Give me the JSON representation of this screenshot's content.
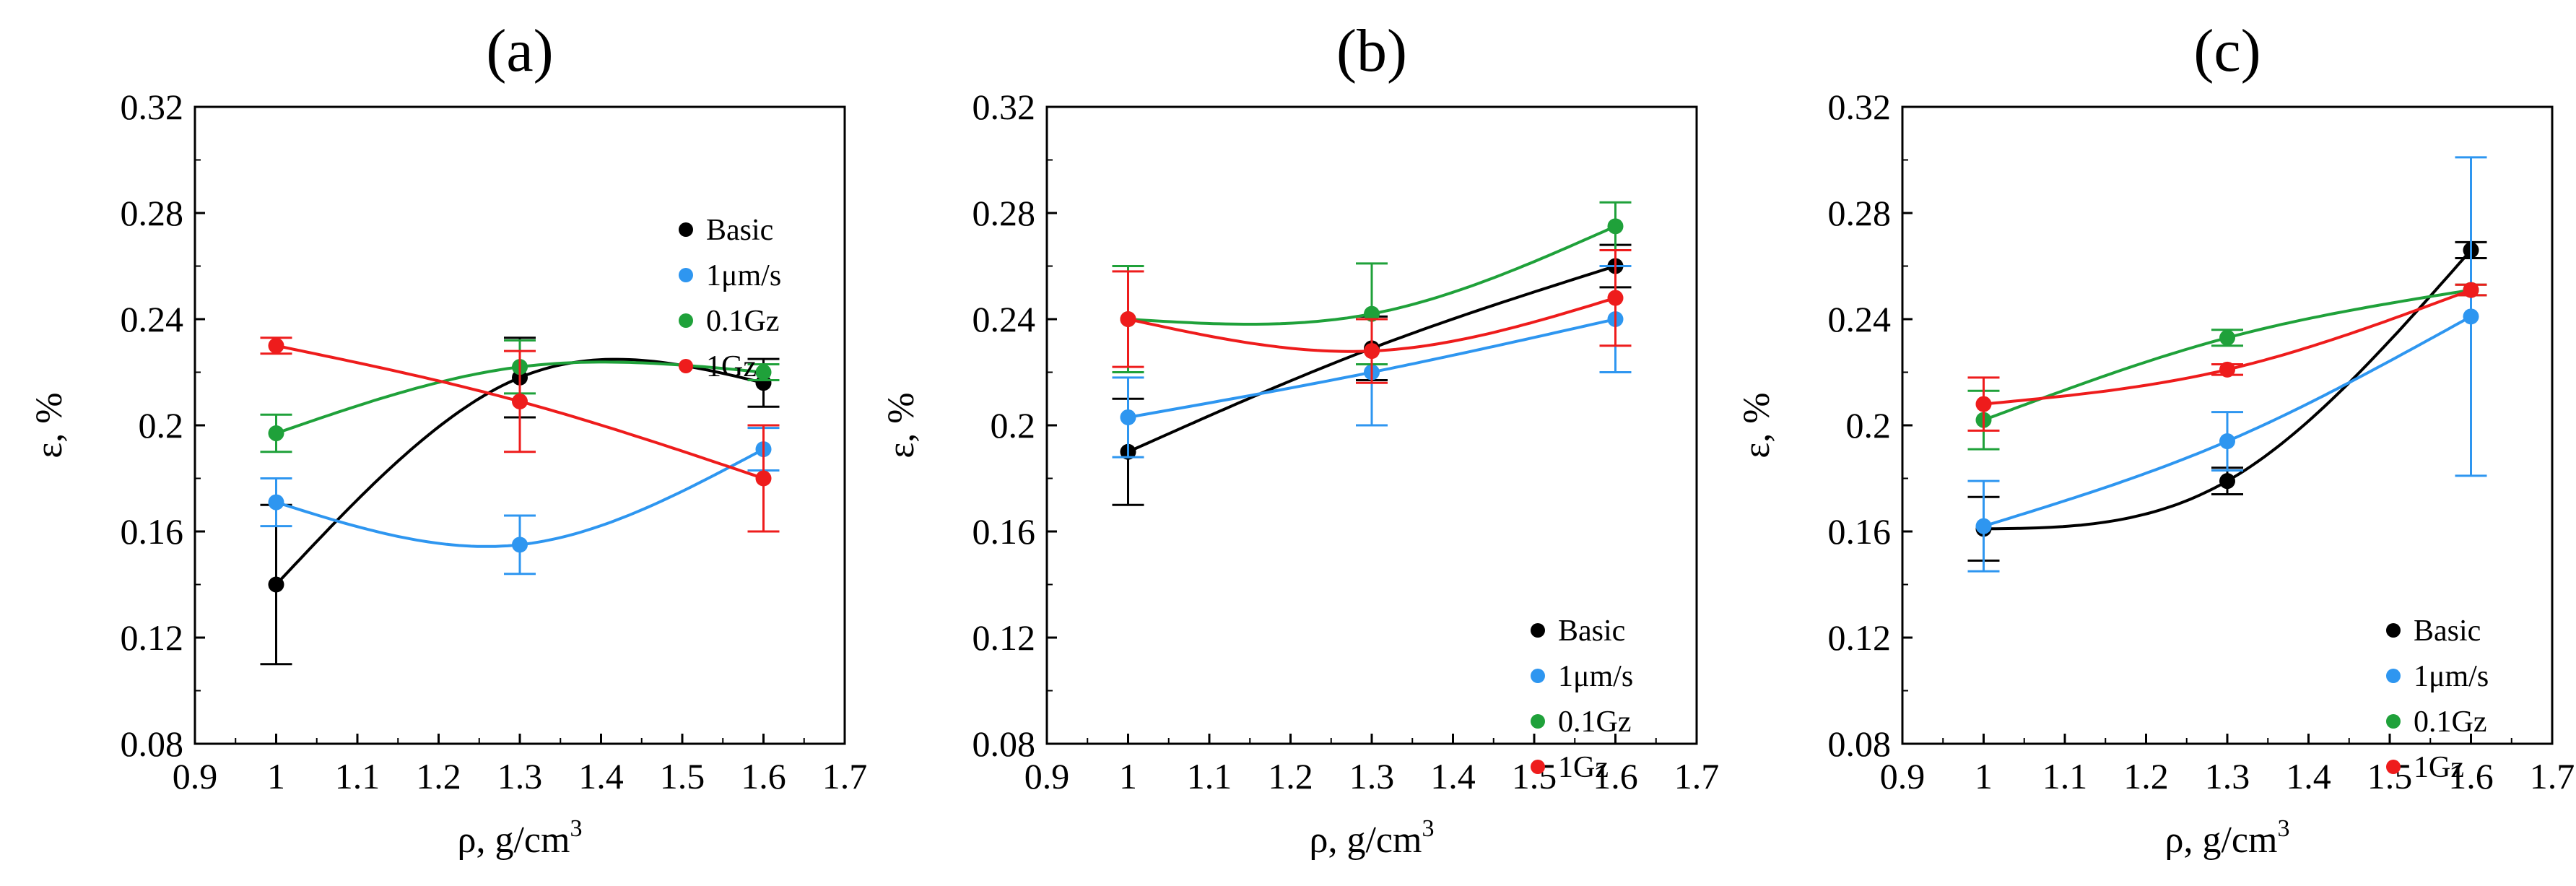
{
  "figure": {
    "description_free": true
  },
  "chart_data": [
    {
      "type": "scatter",
      "panel_label": "(a)",
      "xlabel": "ρ, g/cm",
      "xlabel_superscript": "3",
      "ylabel": "ε, %",
      "xlim": [
        0.9,
        1.7
      ],
      "ylim": [
        0.08,
        0.32
      ],
      "xticks": [
        0.9,
        1.0,
        1.1,
        1.2,
        1.3,
        1.4,
        1.5,
        1.6,
        1.7
      ],
      "xtick_labels": [
        "0.9",
        "1",
        "1.1",
        "1.2",
        "1.3",
        "1.4",
        "1.5",
        "1.6",
        "1.7"
      ],
      "yticks": [
        0.08,
        0.12,
        0.16,
        0.2,
        0.24,
        0.28,
        0.32
      ],
      "ytick_labels": [
        "0.08",
        "0.12",
        "0.16",
        "0.2",
        "0.24",
        "0.28",
        "0.32"
      ],
      "legend_position": "top-right",
      "series": [
        {
          "name": "Basic",
          "color": "#000000",
          "x": [
            1.0,
            1.3,
            1.6
          ],
          "y": [
            0.14,
            0.218,
            0.216
          ],
          "err": [
            0.03,
            0.015,
            0.009
          ]
        },
        {
          "name": "1μm/s",
          "color": "#2e96f0",
          "x": [
            1.0,
            1.3,
            1.6
          ],
          "y": [
            0.171,
            0.155,
            0.191
          ],
          "err": [
            0.009,
            0.011,
            0.008
          ]
        },
        {
          "name": "0.1Gz",
          "color": "#1fa13a",
          "x": [
            1.0,
            1.3,
            1.6
          ],
          "y": [
            0.197,
            0.222,
            0.22
          ],
          "err": [
            0.007,
            0.01,
            0.003
          ]
        },
        {
          "name": "1Gz",
          "color": "#ee1c1c",
          "x": [
            1.0,
            1.3,
            1.6
          ],
          "y": [
            0.23,
            0.209,
            0.18
          ],
          "err": [
            0.003,
            0.019,
            0.02
          ]
        }
      ]
    },
    {
      "type": "scatter",
      "panel_label": "(b)",
      "xlabel": "ρ, g/cm",
      "xlabel_superscript": "3",
      "ylabel": "ε, %",
      "xlim": [
        0.9,
        1.7
      ],
      "ylim": [
        0.08,
        0.32
      ],
      "xticks": [
        0.9,
        1.0,
        1.1,
        1.2,
        1.3,
        1.4,
        1.5,
        1.6,
        1.7
      ],
      "xtick_labels": [
        "0.9",
        "1",
        "1.1",
        "1.2",
        "1.3",
        "1.4",
        "1.5",
        "1.6",
        "1.7"
      ],
      "yticks": [
        0.08,
        0.12,
        0.16,
        0.2,
        0.24,
        0.28,
        0.32
      ],
      "ytick_labels": [
        "0.08",
        "0.12",
        "0.16",
        "0.2",
        "0.24",
        "0.28",
        "0.32"
      ],
      "legend_position": "bottom-right",
      "series": [
        {
          "name": "Basic",
          "color": "#000000",
          "x": [
            1.0,
            1.3,
            1.6
          ],
          "y": [
            0.19,
            0.229,
            0.26
          ],
          "err": [
            0.02,
            0.012,
            0.008
          ]
        },
        {
          "name": "1μm/s",
          "color": "#2e96f0",
          "x": [
            1.0,
            1.3,
            1.6
          ],
          "y": [
            0.203,
            0.22,
            0.24
          ],
          "err": [
            0.015,
            0.02,
            0.02
          ]
        },
        {
          "name": "0.1Gz",
          "color": "#1fa13a",
          "x": [
            1.0,
            1.3,
            1.6
          ],
          "y": [
            0.24,
            0.242,
            0.275
          ],
          "err": [
            0.02,
            0.019,
            0.009
          ]
        },
        {
          "name": "1Gz",
          "color": "#ee1c1c",
          "x": [
            1.0,
            1.3,
            1.6
          ],
          "y": [
            0.24,
            0.228,
            0.248
          ],
          "err": [
            0.018,
            0.012,
            0.018
          ]
        }
      ]
    },
    {
      "type": "scatter",
      "panel_label": "(c)",
      "xlabel": "ρ, g/cm",
      "xlabel_superscript": "3",
      "ylabel": "ε, %",
      "xlim": [
        0.9,
        1.7
      ],
      "ylim": [
        0.08,
        0.32
      ],
      "xticks": [
        0.9,
        1.0,
        1.1,
        1.2,
        1.3,
        1.4,
        1.5,
        1.6,
        1.7
      ],
      "xtick_labels": [
        "0.9",
        "1",
        "1.1",
        "1.2",
        "1.3",
        "1.4",
        "1.5",
        "1.6",
        "1.7"
      ],
      "yticks": [
        0.08,
        0.12,
        0.16,
        0.2,
        0.24,
        0.28,
        0.32
      ],
      "ytick_labels": [
        "0.08",
        "0.12",
        "0.16",
        "0.2",
        "0.24",
        "0.28",
        "0.32"
      ],
      "legend_position": "bottom-right",
      "series": [
        {
          "name": "Basic",
          "color": "#000000",
          "x": [
            1.0,
            1.3,
            1.6
          ],
          "y": [
            0.161,
            0.179,
            0.266
          ],
          "err": [
            0.012,
            0.005,
            0.003
          ]
        },
        {
          "name": "1μm/s",
          "color": "#2e96f0",
          "x": [
            1.0,
            1.3,
            1.6
          ],
          "y": [
            0.162,
            0.194,
            0.241
          ],
          "err": [
            0.017,
            0.011,
            0.06
          ]
        },
        {
          "name": "0.1Gz",
          "color": "#1fa13a",
          "x": [
            1.0,
            1.3,
            1.6
          ],
          "y": [
            0.202,
            0.233,
            0.251
          ],
          "err": [
            0.011,
            0.003,
            0.002
          ]
        },
        {
          "name": "1Gz",
          "color": "#ee1c1c",
          "x": [
            1.0,
            1.3,
            1.6
          ],
          "y": [
            0.208,
            0.221,
            0.251
          ],
          "err": [
            0.01,
            0.002,
            0.002
          ]
        }
      ]
    }
  ]
}
